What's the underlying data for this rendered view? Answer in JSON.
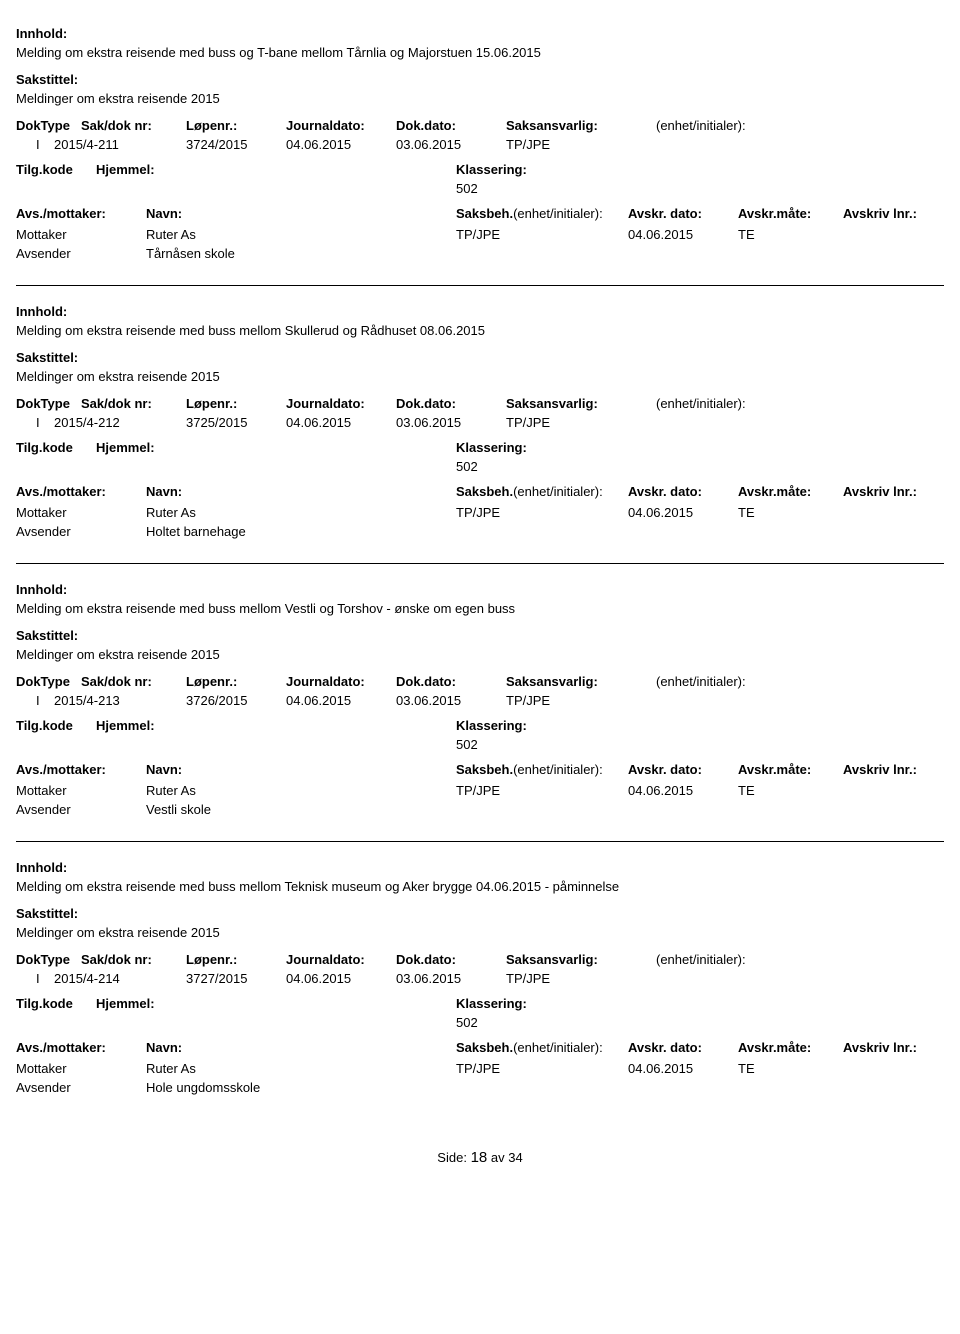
{
  "labels": {
    "innhold": "Innhold:",
    "sakstittel": "Sakstittel:",
    "doktype": "DokType",
    "sakdoknr": "Sak/dok nr:",
    "lopenr": "Løpenr.:",
    "journaldato": "Journaldato:",
    "dokdato": "Dok.dato:",
    "saksansvarlig": "Saksansvarlig:",
    "enhet": "(enhet/initialer):",
    "tilgkode": "Tilg.kode",
    "hjemmel": "Hjemmel:",
    "klassering": "Klassering:",
    "avsmottaker": "Avs./mottaker:",
    "navn": "Navn:",
    "saksbeh": "Saksbeh.",
    "saksbeh_enhet": "(enhet/initialer):",
    "avskrdato": "Avskr. dato:",
    "avskrmate": "Avskr.måte:",
    "avskrivlnr": "Avskriv lnr.:",
    "mottaker": "Mottaker",
    "avsender": "Avsender",
    "side": "Side:",
    "av": "av"
  },
  "page": {
    "current": "18",
    "total": "34"
  },
  "entries": [
    {
      "innhold": "Melding om ekstra reisende med buss og T-bane mellom Tårnlia og Majorstuen 15.06.2015",
      "sakstittel": "Meldinger om ekstra reisende 2015",
      "doktype": "I",
      "sakdoknr": "2015/4-211",
      "lopenr": "3724/2015",
      "journaldato": "04.06.2015",
      "dokdato": "03.06.2015",
      "saksansvarlig": "TP/JPE",
      "klassering": "502",
      "mottaker": "Ruter As",
      "saksbeh": "TP/JPE",
      "avskrdato": "04.06.2015",
      "avskrmate": "TE",
      "avsender": "Tårnåsen skole"
    },
    {
      "innhold": "Melding om ekstra reisende med buss mellom Skullerud og Rådhuset 08.06.2015",
      "sakstittel": "Meldinger om ekstra reisende 2015",
      "doktype": "I",
      "sakdoknr": "2015/4-212",
      "lopenr": "3725/2015",
      "journaldato": "04.06.2015",
      "dokdato": "03.06.2015",
      "saksansvarlig": "TP/JPE",
      "klassering": "502",
      "mottaker": "Ruter As",
      "saksbeh": "TP/JPE",
      "avskrdato": "04.06.2015",
      "avskrmate": "TE",
      "avsender": "Holtet barnehage"
    },
    {
      "innhold": "Melding om ekstra reisende med buss mellom Vestli og Torshov - ønske om egen buss",
      "sakstittel": "Meldinger om ekstra reisende 2015",
      "doktype": "I",
      "sakdoknr": "2015/4-213",
      "lopenr": "3726/2015",
      "journaldato": "04.06.2015",
      "dokdato": "03.06.2015",
      "saksansvarlig": "TP/JPE",
      "klassering": "502",
      "mottaker": "Ruter As",
      "saksbeh": "TP/JPE",
      "avskrdato": "04.06.2015",
      "avskrmate": "TE",
      "avsender": "Vestli skole"
    },
    {
      "innhold": "Melding om ekstra reisende med buss mellom Teknisk museum og Aker brygge 04.06.2015 - påminnelse",
      "sakstittel": "Meldinger om ekstra reisende 2015",
      "doktype": "I",
      "sakdoknr": "2015/4-214",
      "lopenr": "3727/2015",
      "journaldato": "04.06.2015",
      "dokdato": "03.06.2015",
      "saksansvarlig": "TP/JPE",
      "klassering": "502",
      "mottaker": "Ruter As",
      "saksbeh": "TP/JPE",
      "avskrdato": "04.06.2015",
      "avskrmate": "TE",
      "avsender": "Hole ungdomsskole"
    }
  ]
}
